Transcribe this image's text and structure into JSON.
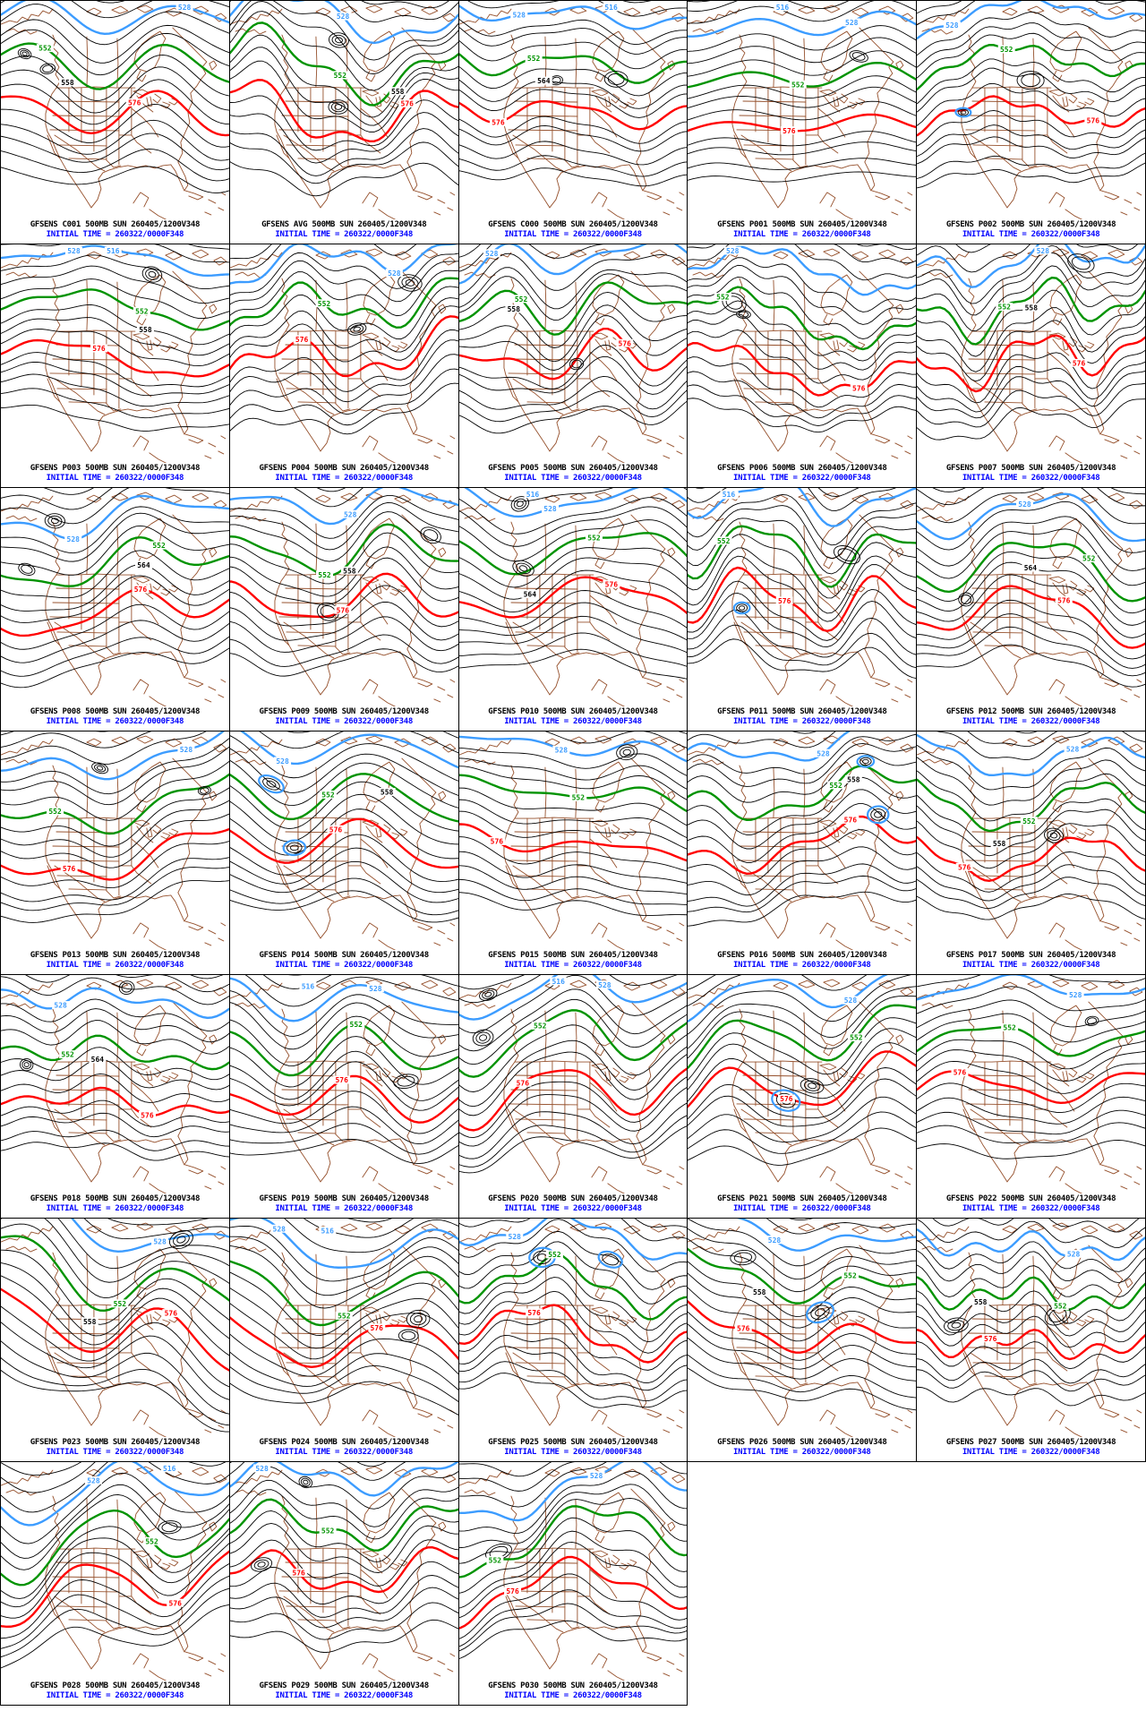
{
  "page": {
    "description": "GFS ensemble 500MB height forecast multi-panel grid",
    "background": "#ffffff"
  },
  "grid": {
    "columns": 5,
    "rows": 7,
    "panel_count": 33
  },
  "colors": {
    "contour_thin": "#000000",
    "highlight_blue": "#3c9cff",
    "highlight_green": "#009300",
    "highlight_red": "#ff0000",
    "map_outline": "#96512d",
    "caption_text": "#000000",
    "initial_time_text": "#0000ff",
    "panel_border": "#000000"
  },
  "contours": {
    "interval": 6,
    "blue": "528",
    "green": "552",
    "red": "576",
    "secondary_blue": "516"
  },
  "shared": {
    "initial_time": "INITIAL TIME = 260322/0000F348"
  },
  "panels": [
    {
      "id": "C001",
      "title": "GFSENS C001 500MB SUN 260405/1200V348"
    },
    {
      "id": "AVG",
      "title": "GFSENS AVG 500MB SUN 260405/1200V348"
    },
    {
      "id": "C000",
      "title": "GFSENS C000 500MB SUN 260405/1200V348"
    },
    {
      "id": "P001",
      "title": "GFSENS P001 500MB SUN 260405/1200V348"
    },
    {
      "id": "P002",
      "title": "GFSENS P002 500MB SUN 260405/1200V348"
    },
    {
      "id": "P003",
      "title": "GFSENS P003 500MB SUN 260405/1200V348"
    },
    {
      "id": "P004",
      "title": "GFSENS P004 500MB SUN 260405/1200V348"
    },
    {
      "id": "P005",
      "title": "GFSENS P005 500MB SUN 260405/1200V348"
    },
    {
      "id": "P006",
      "title": "GFSENS P006 500MB SUN 260405/1200V348"
    },
    {
      "id": "P007",
      "title": "GFSENS P007 500MB SUN 260405/1200V348"
    },
    {
      "id": "P008",
      "title": "GFSENS P008 500MB SUN 260405/1200V348"
    },
    {
      "id": "P009",
      "title": "GFSENS P009 500MB SUN 260405/1200V348"
    },
    {
      "id": "P010",
      "title": "GFSENS P010 500MB SUN 260405/1200V348"
    },
    {
      "id": "P011",
      "title": "GFSENS P011 500MB SUN 260405/1200V348"
    },
    {
      "id": "P012",
      "title": "GFSENS P012 500MB SUN 260405/1200V348"
    },
    {
      "id": "P013",
      "title": "GFSENS P013 500MB SUN 260405/1200V348"
    },
    {
      "id": "P014",
      "title": "GFSENS P014 500MB SUN 260405/1200V348"
    },
    {
      "id": "P015",
      "title": "GFSENS P015 500MB SUN 260405/1200V348"
    },
    {
      "id": "P016",
      "title": "GFSENS P016 500MB SUN 260405/1200V348"
    },
    {
      "id": "P017",
      "title": "GFSENS P017 500MB SUN 260405/1200V348"
    },
    {
      "id": "P018",
      "title": "GFSENS P018 500MB SUN 260405/1200V348"
    },
    {
      "id": "P019",
      "title": "GFSENS P019 500MB SUN 260405/1200V348"
    },
    {
      "id": "P020",
      "title": "GFSENS P020 500MB SUN 260405/1200V348"
    },
    {
      "id": "P021",
      "title": "GFSENS P021 500MB SUN 260405/1200V348"
    },
    {
      "id": "P022",
      "title": "GFSENS P022 500MB SUN 260405/1200V348"
    },
    {
      "id": "P023",
      "title": "GFSENS P023 500MB SUN 260405/1200V348"
    },
    {
      "id": "P024",
      "title": "GFSENS P024 500MB SUN 260405/1200V348"
    },
    {
      "id": "P025",
      "title": "GFSENS P025 500MB SUN 260405/1200V348"
    },
    {
      "id": "P026",
      "title": "GFSENS P026 500MB SUN 260405/1200V348"
    },
    {
      "id": "P027",
      "title": "GFSENS P027 500MB SUN 260405/1200V348"
    },
    {
      "id": "P028",
      "title": "GFSENS P028 500MB SUN 260405/1200V348"
    },
    {
      "id": "P029",
      "title": "GFSENS P029 500MB SUN 260405/1200V348"
    },
    {
      "id": "P030",
      "title": "GFSENS P030 500MB SUN 260405/1200V348"
    }
  ]
}
